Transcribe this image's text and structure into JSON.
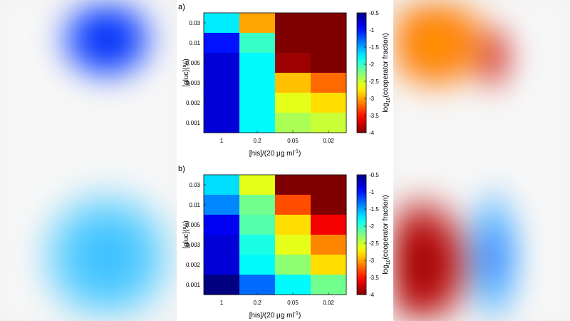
{
  "colors": {
    "panel_bg": "#ffffff",
    "frame": "#000000"
  },
  "chart_data": [
    {
      "type": "heatmap",
      "panel_label": "a)",
      "xlabel_main": "[his]/(20 ",
      "xlabel_mu": "μ",
      "xlabel_rest": "g ml",
      "xlabel_sup": "-1",
      "xlabel_close": ")",
      "ylabel": "[gluc](%)",
      "x_categories": [
        "1",
        "0.2",
        "0.05",
        "0.02"
      ],
      "y_categories": [
        "0.03",
        "0.01",
        "0.005",
        "0.003",
        "0.002",
        "0.001"
      ],
      "values": [
        [
          -1.75,
          -3.0,
          -4.0,
          -4.0
        ],
        [
          -1.0,
          -2.0,
          -4.0,
          -4.0
        ],
        [
          -0.8,
          -1.8,
          -3.9,
          -4.0
        ],
        [
          -0.8,
          -1.8,
          -2.9,
          -3.2
        ],
        [
          -0.8,
          -1.8,
          -2.6,
          -2.8
        ],
        [
          -0.8,
          -1.8,
          -2.4,
          -2.5
        ]
      ],
      "colorbar": {
        "min": -4,
        "max": -0.5,
        "ticks": [
          "-0.5",
          "-1",
          "-1.5",
          "-2",
          "-2.5",
          "-3",
          "-3.5",
          "-4"
        ],
        "label_pre": "log",
        "label_sub": "10",
        "label_post": "(cooperator fraction)"
      }
    },
    {
      "type": "heatmap",
      "panel_label": "b)",
      "xlabel_main": "[his]/(20 ",
      "xlabel_mu": "μ",
      "xlabel_rest": "g ml",
      "xlabel_sup": "-1",
      "xlabel_close": ")",
      "ylabel": "[gluc](%)",
      "x_categories": [
        "1",
        "0.2",
        "0.05",
        "0.02"
      ],
      "y_categories": [
        "0.03",
        "0.01",
        "0.005",
        "0.003",
        "0.002",
        "0.001"
      ],
      "values": [
        [
          -1.7,
          -2.6,
          -4.0,
          -4.0
        ],
        [
          -1.4,
          -2.2,
          -3.3,
          -4.0
        ],
        [
          -0.9,
          -2.1,
          -2.8,
          -3.6
        ],
        [
          -0.8,
          -1.9,
          -2.6,
          -3.1
        ],
        [
          -0.8,
          -1.8,
          -2.3,
          -2.8
        ],
        [
          -0.5,
          -1.3,
          -1.8,
          -2.2
        ]
      ],
      "colorbar": {
        "min": -4,
        "max": -0.5,
        "ticks": [
          "-0.5",
          "-1",
          "-1.5",
          "-2",
          "-2.5",
          "-3",
          "-3.5",
          "-4"
        ],
        "label_pre": "log",
        "label_sub": "10",
        "label_post": "(cooperator fraction)"
      }
    }
  ]
}
